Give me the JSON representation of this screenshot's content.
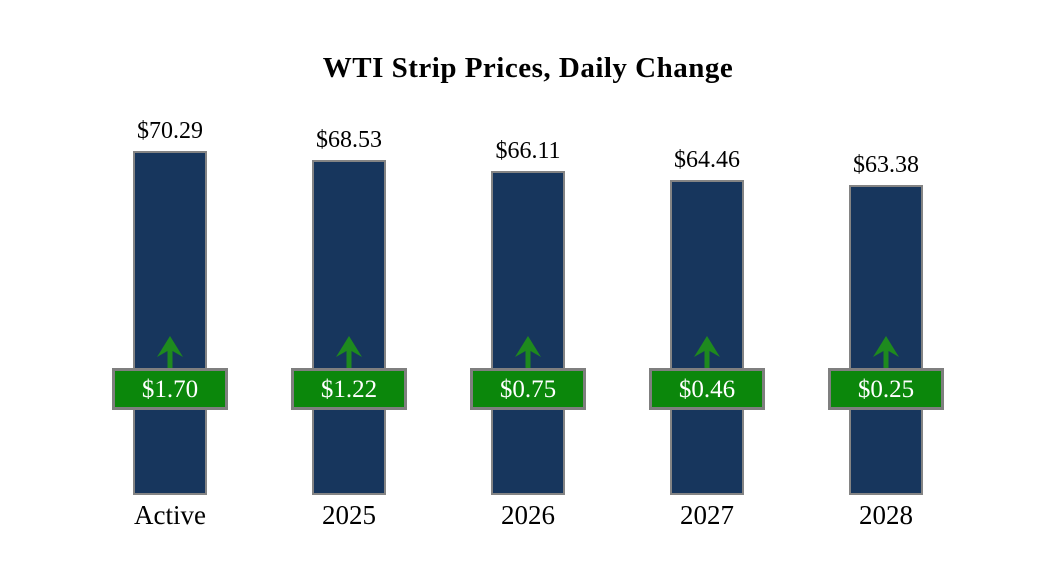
{
  "title": "WTI Strip Prices, Daily Change",
  "colors": {
    "bar": "#17365D",
    "bar_border": "#848484",
    "badge_bg": "#0B870B",
    "badge_border": "#7F7F7F",
    "arrow": "#1E8A1E",
    "title_text": "#000000",
    "badge_text": "#FFFFFF",
    "background": "#FFFFFF"
  },
  "chart_data": {
    "type": "bar",
    "title": "WTI Strip Prices, Daily Change",
    "xlabel": "",
    "ylabel": "",
    "categories": [
      "Active",
      "2025",
      "2026",
      "2027",
      "2028"
    ],
    "series": [
      {
        "name": "WTI Strip Price ($/bbl)",
        "values": [
          70.29,
          68.53,
          66.11,
          64.46,
          63.38
        ],
        "labels": [
          "$70.29",
          "$68.53",
          "$66.11",
          "$64.46",
          "$63.38"
        ]
      },
      {
        "name": "Daily Change",
        "values": [
          1.7,
          1.22,
          0.75,
          0.46,
          0.25
        ],
        "labels": [
          "$1.70",
          "$1.22",
          "$0.75",
          "$0.46",
          "$0.25"
        ],
        "direction": [
          "up",
          "up",
          "up",
          "up",
          "up"
        ]
      }
    ],
    "ylim": [
      0,
      75
    ],
    "grid": false,
    "legend": "none",
    "axis_lines": false
  }
}
